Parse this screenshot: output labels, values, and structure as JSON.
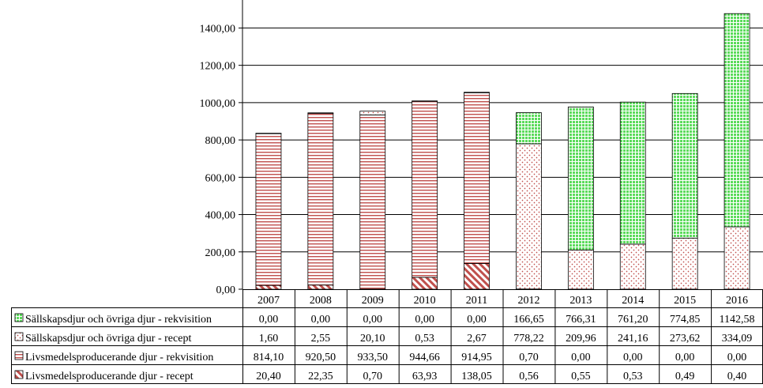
{
  "chart_data": {
    "type": "bar",
    "stacked": true,
    "categories": [
      "2007",
      "2008",
      "2009",
      "2010",
      "2011",
      "2012",
      "2013",
      "2014",
      "2015",
      "2016"
    ],
    "y_tick_labels": [
      "0,00",
      "200,00",
      "400,00",
      "600,00",
      "800,00",
      "1000,00",
      "1200,00",
      "1400,00"
    ],
    "ylim": [
      0,
      1550
    ],
    "grid": true,
    "legend_placement": "data-table-left",
    "series": [
      {
        "name": "Livsmedelsproducerande djur - recept",
        "values": [
          20.4,
          22.35,
          0.7,
          63.93,
          138.05,
          0.56,
          0.55,
          0.53,
          0.49,
          0.4
        ],
        "labels": [
          "20,40",
          "22,35",
          "0,70",
          "63,93",
          "138,05",
          "0,56",
          "0,55",
          "0,53",
          "0,49",
          "0,40"
        ],
        "color": "#C0504D",
        "pattern": "diagonal-hatch"
      },
      {
        "name": "Livsmedelsproducerande djur - rekvisition",
        "values": [
          814.1,
          920.5,
          933.5,
          944.66,
          914.95,
          0.7,
          0.0,
          0.0,
          0.0,
          0.0
        ],
        "labels": [
          "814,10",
          "920,50",
          "933,50",
          "944,66",
          "914,95",
          "0,70",
          "0,00",
          "0,00",
          "0,00",
          "0,00"
        ],
        "color": "#C0504D",
        "pattern": "horizontal-lines"
      },
      {
        "name": "Sällskapsdjur och övriga djur - recept",
        "values": [
          1.6,
          2.55,
          20.1,
          0.53,
          2.67,
          778.22,
          209.96,
          241.16,
          273.62,
          334.09
        ],
        "labels": [
          "1,60",
          "2,55",
          "20,10",
          "0,53",
          "2,67",
          "778,22",
          "209,96",
          "241,16",
          "273,62",
          "334,09"
        ],
        "color": "#C0504D",
        "pattern": "dots"
      },
      {
        "name": "Sällskapsdjur och övriga djur - rekvisition",
        "values": [
          0.0,
          0.0,
          0.0,
          0.0,
          0.0,
          166.65,
          766.31,
          761.2,
          774.85,
          1142.58
        ],
        "labels": [
          "0,00",
          "0,00",
          "0,00",
          "0,00",
          "0,00",
          "166,65",
          "766,31",
          "761,20",
          "774,85",
          "1142,58"
        ],
        "color": "#33CC33",
        "pattern": "grid"
      }
    ]
  }
}
